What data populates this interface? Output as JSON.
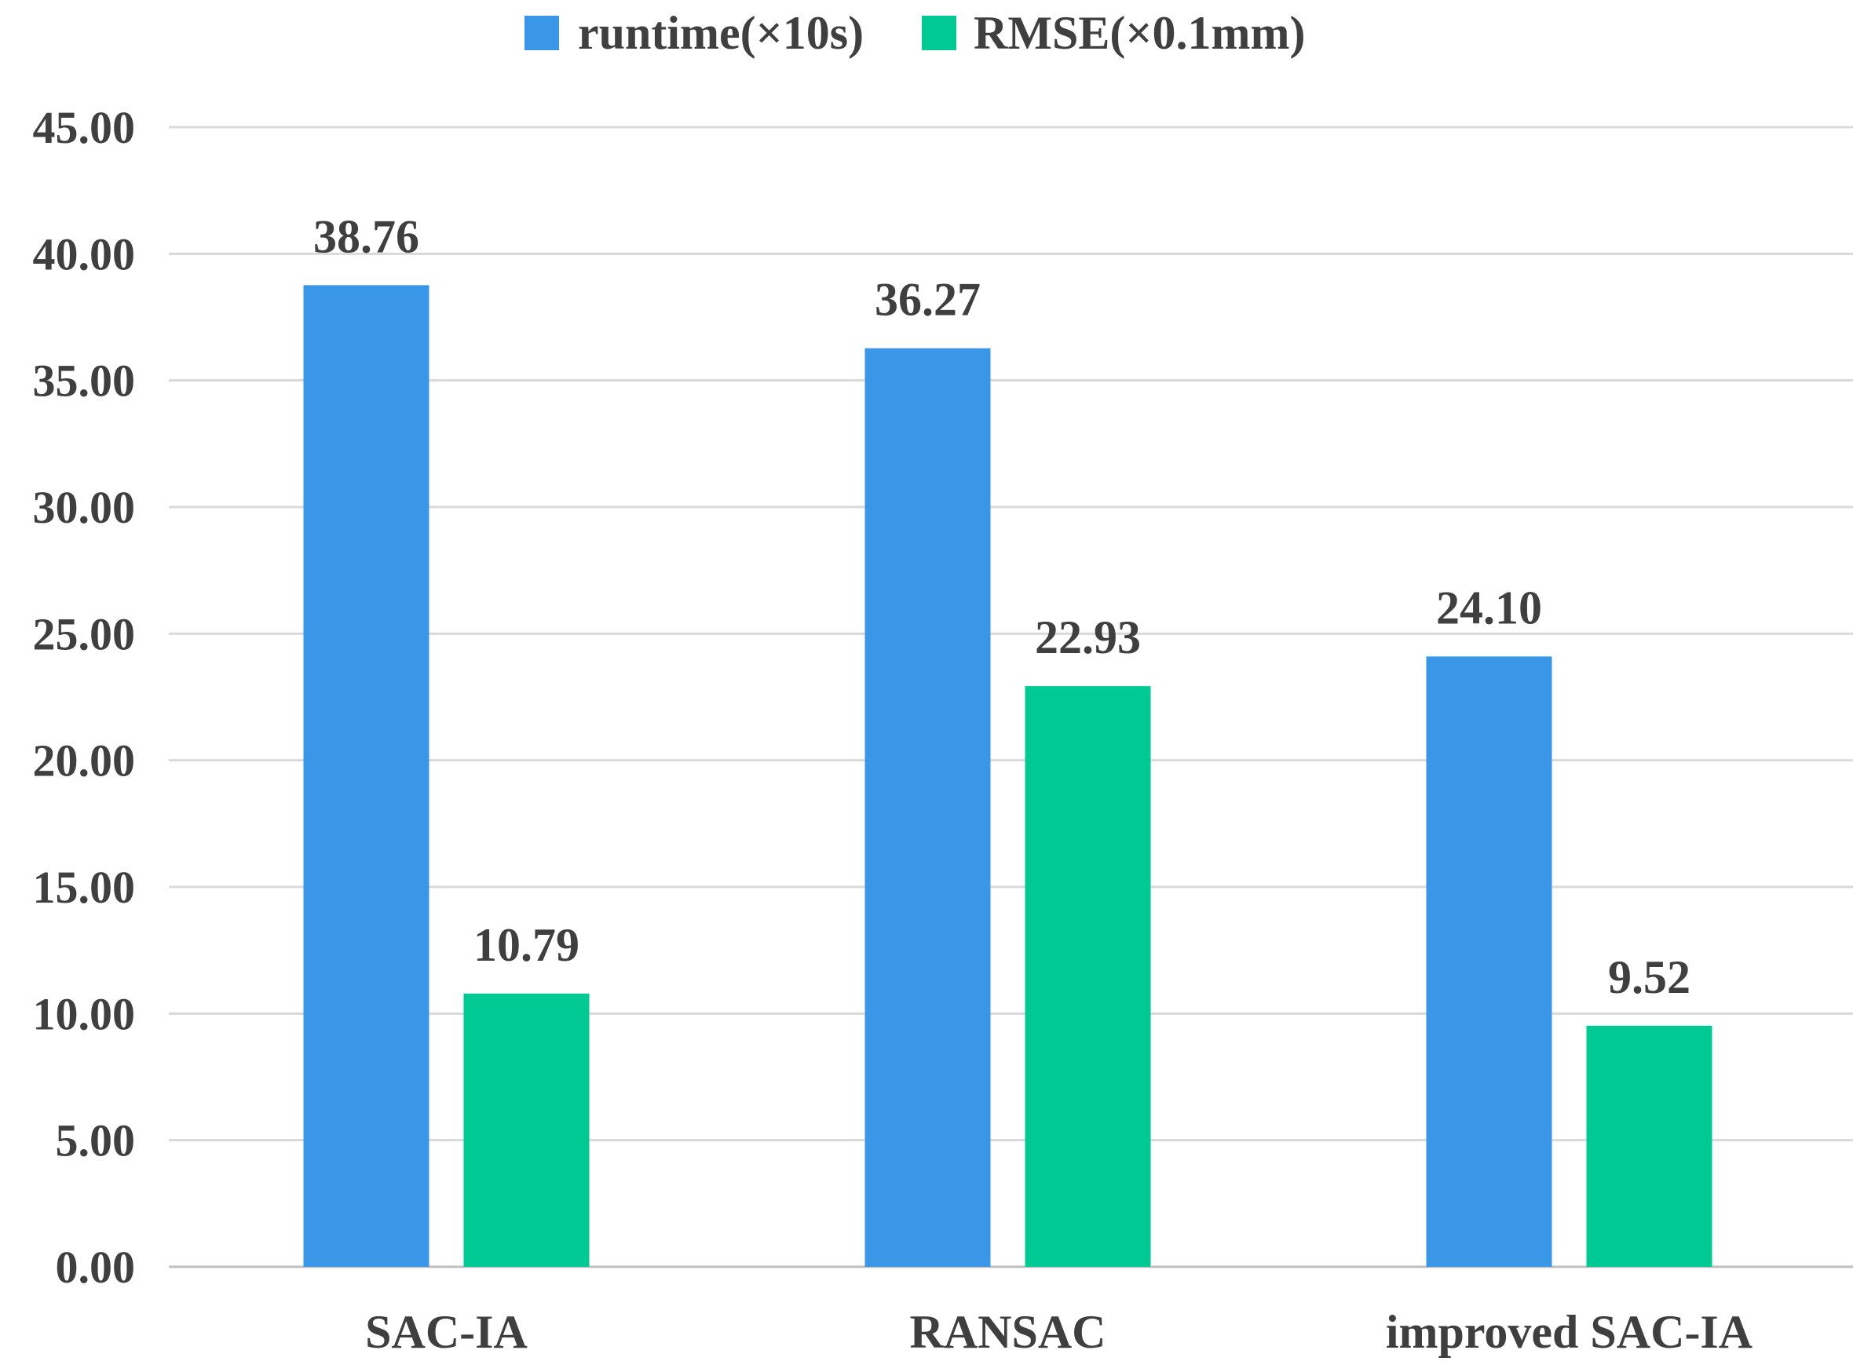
{
  "chart_data": {
    "type": "bar",
    "title": "",
    "xlabel": "",
    "ylabel": "",
    "categories": [
      "SAC-IA",
      "RANSAC",
      "improved SAC-IA"
    ],
    "series": [
      {
        "name": "runtime(×10s)",
        "color": "#3A96E6",
        "values": [
          38.76,
          36.27,
          24.1
        ],
        "labels": [
          "38.76",
          "36.27",
          "24.10"
        ]
      },
      {
        "name": "RMSE(×0.1mm)",
        "color": "#00C994",
        "values": [
          10.79,
          22.93,
          9.52
        ],
        "labels": [
          "10.79",
          "22.93",
          "9.52"
        ]
      }
    ],
    "ylim": [
      0,
      45
    ],
    "yticks": [
      0,
      5,
      10,
      15,
      20,
      25,
      30,
      35,
      40,
      45
    ],
    "ytick_labels": [
      "0.00",
      "5.00",
      "10.00",
      "15.00",
      "20.00",
      "25.00",
      "30.00",
      "35.00",
      "40.00",
      "45.00"
    ],
    "grid": true,
    "legend_position": "top-center"
  }
}
